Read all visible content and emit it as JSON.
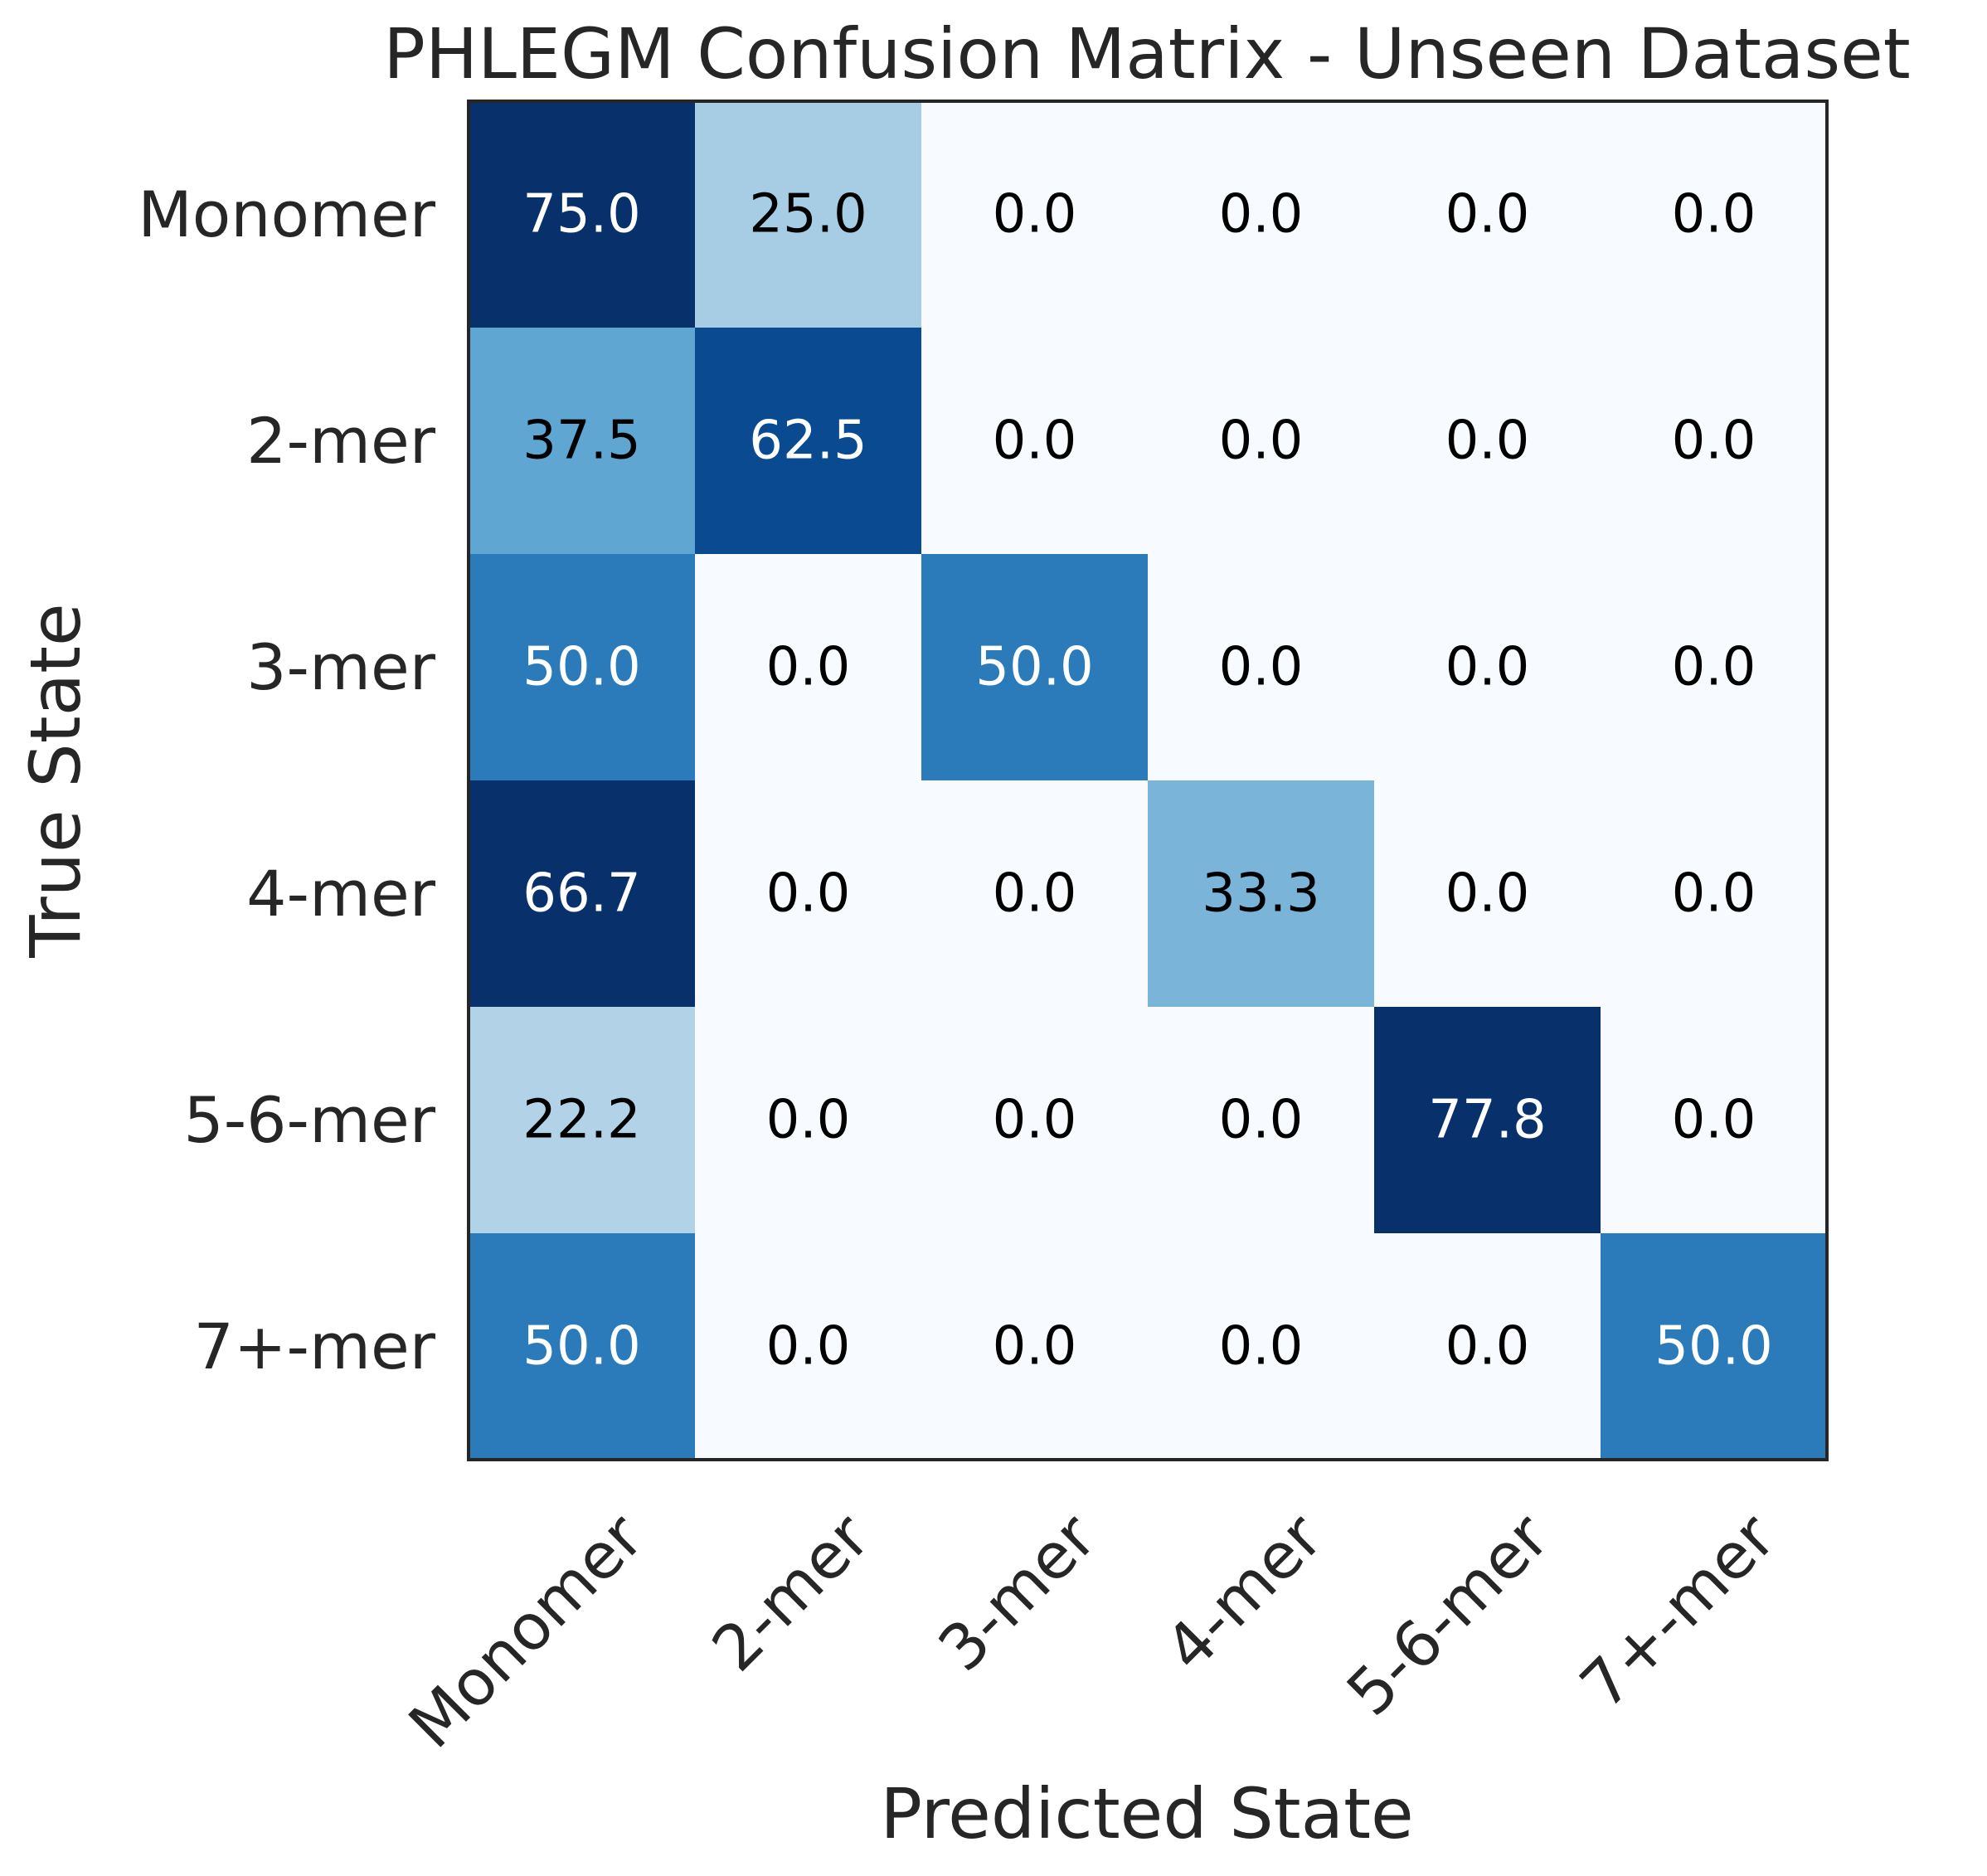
{
  "chart_data": {
    "type": "heatmap",
    "title": "PHLEGM Confusion Matrix - Unseen Dataset",
    "xlabel": "Predicted State",
    "ylabel": "True State",
    "x_categories": [
      "Monomer",
      "2-mer",
      "3-mer",
      "4-mer",
      "5-6-mer",
      "7+-mer"
    ],
    "y_categories": [
      "Monomer",
      "2-mer",
      "3-mer",
      "4-mer",
      "5-6-mer",
      "7+-mer"
    ],
    "values": [
      [
        75.0,
        25.0,
        0.0,
        0.0,
        0.0,
        0.0
      ],
      [
        37.5,
        62.5,
        0.0,
        0.0,
        0.0,
        0.0
      ],
      [
        50.0,
        0.0,
        50.0,
        0.0,
        0.0,
        0.0
      ],
      [
        66.7,
        0.0,
        0.0,
        33.3,
        0.0,
        0.0
      ],
      [
        22.2,
        0.0,
        0.0,
        0.0,
        77.8,
        0.0
      ],
      [
        50.0,
        0.0,
        0.0,
        0.0,
        0.0,
        50.0
      ]
    ],
    "colormap": "Blues",
    "colors": {
      "v75.0": "#08306b",
      "v25.0": "#a6cde3",
      "v37.5": "#60a6d2",
      "v62.5": "#0a4a91",
      "v50.0": "#2b7bbb",
      "v66.7": "#08306b",
      "v33.3": "#7ab5d9",
      "v22.2": "#b1d2e7",
      "v77.8": "#08306b",
      "v0.0": "#f7fbff"
    },
    "text_colors": {
      "dark_cell": "#ffffff",
      "light_cell": "#000000"
    },
    "grid": false,
    "legend": "none"
  }
}
